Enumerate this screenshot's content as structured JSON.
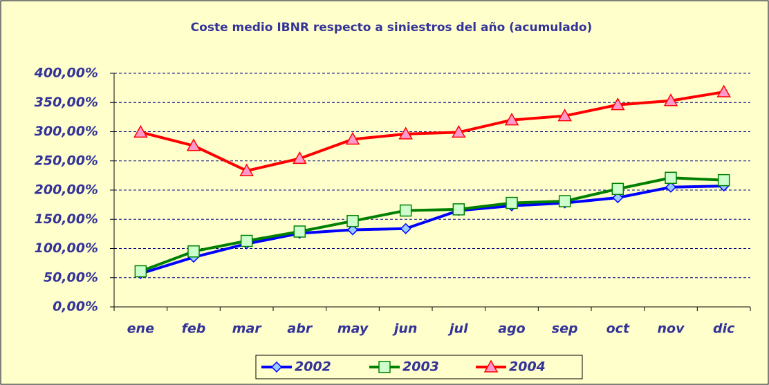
{
  "chart_data": {
    "type": "line",
    "title": "Coste medio IBNR respecto a siniestros del año (acumulado)",
    "categories": [
      "ene",
      "feb",
      "mar",
      "abr",
      "may",
      "jun",
      "jul",
      "ago",
      "sep",
      "oct",
      "nov",
      "dic"
    ],
    "series": [
      {
        "name": "2002",
        "color": "#0000ff",
        "marker": "diamond",
        "marker_fill": "#99ccff",
        "values": [
          57,
          85,
          108,
          126,
          132,
          134,
          165,
          173,
          178,
          187,
          205,
          207
        ]
      },
      {
        "name": "2003",
        "color": "#008000",
        "marker": "square",
        "marker_fill": "#ccffcc",
        "values": [
          61,
          95,
          113,
          129,
          147,
          165,
          167,
          178,
          181,
          202,
          221,
          217
        ]
      },
      {
        "name": "2004",
        "color": "#ff0000",
        "marker": "triangle",
        "marker_fill": "#ff99cc",
        "values": [
          299,
          276,
          233,
          254,
          287,
          296,
          299,
          320,
          327,
          346,
          353,
          368
        ]
      }
    ],
    "ylim": [
      0,
      400
    ],
    "yticks": [
      {
        "value": 0,
        "label": "0,00%"
      },
      {
        "value": 50,
        "label": "50,00%"
      },
      {
        "value": 100,
        "label": "100,00%"
      },
      {
        "value": 150,
        "label": "150,00%"
      },
      {
        "value": 200,
        "label": "200,00%"
      },
      {
        "value": 250,
        "label": "250,00%"
      },
      {
        "value": 300,
        "label": "300,00%"
      },
      {
        "value": 350,
        "label": "350,00%"
      },
      {
        "value": 400,
        "label": "400,00%"
      }
    ],
    "grid": true,
    "legend": "bottom"
  }
}
